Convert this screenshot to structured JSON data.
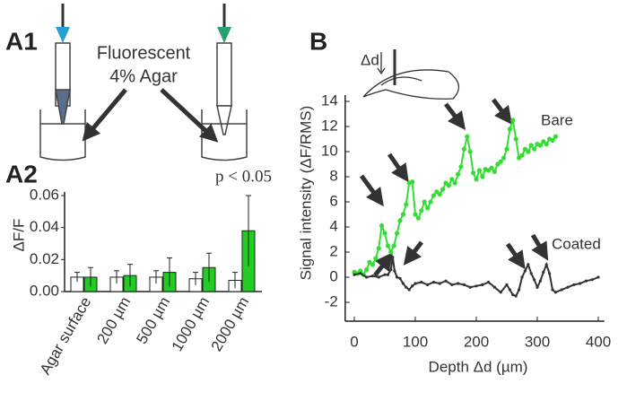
{
  "panel_a1": {
    "label": "A1",
    "caption": [
      "Fluorescent",
      "4% Agar"
    ]
  },
  "chart_data": [
    {
      "type": "bar",
      "panel_label": "A2",
      "annotation": "p < 0.05",
      "y_label": "ΔF/F",
      "categories": [
        "Agar surface",
        "200 µm",
        "500 µm",
        "1000 µm",
        "2000 µm"
      ],
      "series": [
        {
          "color": "#ffffff",
          "values": [
            0.009,
            0.009,
            0.009,
            0.008,
            0.007
          ],
          "errors": [
            0.003,
            0.004,
            0.004,
            0.004,
            0.005
          ]
        },
        {
          "color": "#22cc22",
          "values": [
            0.009,
            0.01,
            0.012,
            0.015,
            0.038
          ],
          "errors": [
            0.006,
            0.007,
            0.009,
            0.009,
            0.022
          ]
        }
      ],
      "ylim": [
        0,
        0.06
      ],
      "yticks": [
        {
          "value": 0,
          "label": "0.00"
        },
        0.02,
        0.04,
        0.06
      ]
    },
    {
      "type": "line",
      "panel_label": "B",
      "y_label": "Signal intensity (ΔF/RMS)",
      "x_label": "Depth Δd (µm)",
      "annotations": [
        "Bare",
        "Coated",
        "Δd"
      ],
      "series": [
        {
          "name": "Bare",
          "color": "#33dd33",
          "x": [
            0,
            5,
            10,
            15,
            20,
            25,
            30,
            35,
            40,
            45,
            50,
            55,
            60,
            65,
            70,
            75,
            80,
            85,
            90,
            95,
            100,
            105,
            110,
            115,
            120,
            125,
            130,
            135,
            140,
            145,
            150,
            155,
            160,
            165,
            170,
            175,
            180,
            185,
            190,
            195,
            200,
            205,
            210,
            215,
            220,
            225,
            230,
            235,
            240,
            245,
            250,
            255,
            260,
            265,
            270,
            275,
            280,
            285,
            290,
            295,
            300,
            305,
            310,
            315,
            320,
            325,
            330
          ],
          "values": [
            0.4,
            0.3,
            0.5,
            0.2,
            0.6,
            1.2,
            1.0,
            1.5,
            2.3,
            4.1,
            3.5,
            2.5,
            2.0,
            2.5,
            3.5,
            4.5,
            5.0,
            5.8,
            7.5,
            7.6,
            5.0,
            4.7,
            5.3,
            6.0,
            5.5,
            6.0,
            6.5,
            6.8,
            6.6,
            7.0,
            7.5,
            7.3,
            7.8,
            7.5,
            8.2,
            8.8,
            10.2,
            11.2,
            10.0,
            8.3,
            7.8,
            8.5,
            8.0,
            8.6,
            8.5,
            8.7,
            8.4,
            9.0,
            9.2,
            9.5,
            10.2,
            11.8,
            12.5,
            11.0,
            9.5,
            9.7,
            10.2,
            10.0,
            10.5,
            10.2,
            10.6,
            10.5,
            10.8,
            10.6,
            11.0,
            10.9,
            11.2
          ]
        },
        {
          "name": "Coated",
          "color": "#333333",
          "x": [
            0,
            10,
            20,
            30,
            40,
            50,
            55,
            60,
            63,
            66,
            70,
            75,
            80,
            85,
            90,
            95,
            100,
            110,
            120,
            130,
            140,
            150,
            160,
            170,
            180,
            190,
            200,
            210,
            220,
            230,
            240,
            250,
            255,
            260,
            265,
            270,
            275,
            280,
            285,
            290,
            295,
            300,
            305,
            310,
            315,
            320,
            325,
            330,
            340,
            350,
            360,
            370,
            380,
            390,
            400
          ],
          "values": [
            0.2,
            0.3,
            0,
            0.1,
            0,
            0.2,
            0.2,
            0.6,
            1.6,
            0.5,
            0,
            -0.1,
            -0.5,
            -0.8,
            -1.0,
            -0.7,
            -0.5,
            -0.4,
            -0.6,
            -0.4,
            -0.5,
            -0.3,
            -0.6,
            -0.5,
            -0.6,
            -0.8,
            -0.7,
            -0.6,
            -0.4,
            -0.8,
            -1.2,
            -0.6,
            -1.0,
            -1.4,
            -1.5,
            -1.0,
            0,
            0.5,
            1.0,
            0.3,
            -0.2,
            -0.8,
            -0.3,
            0.4,
            1.0,
            0.3,
            -1.0,
            -1.2,
            -1.0,
            -0.8,
            -0.6,
            -0.5,
            -0.3,
            -0.2,
            0
          ]
        }
      ],
      "xlim": [
        -15,
        410
      ],
      "ylim": [
        -3.5,
        14.5
      ],
      "xticks": [
        0,
        100,
        200,
        300,
        400
      ],
      "yticks": [
        -2,
        0,
        2,
        4,
        6,
        8,
        10,
        12,
        14
      ]
    }
  ]
}
